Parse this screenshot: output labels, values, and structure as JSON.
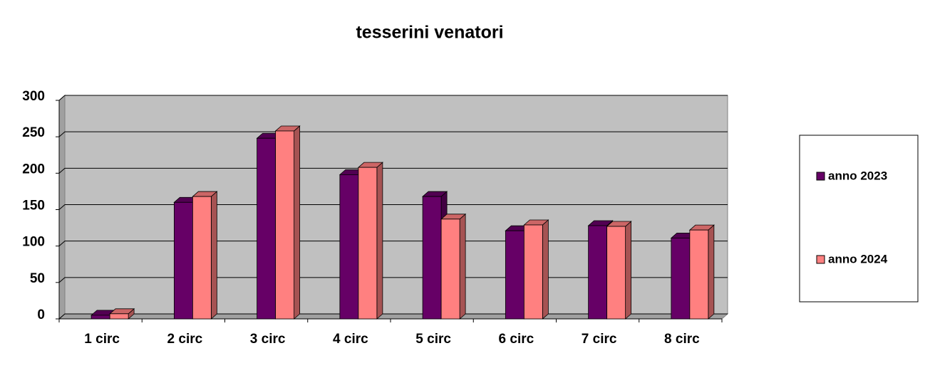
{
  "chart_data": {
    "type": "bar3d",
    "title": "tesserini venatori",
    "categories": [
      "1 circ",
      "2 circ",
      "3 circ",
      "4 circ",
      "5 circ",
      "6 circ",
      "7 circ",
      "8 circ"
    ],
    "series": [
      {
        "name": "anno 2023",
        "color": "#660066",
        "values": [
          5,
          160,
          248,
          198,
          168,
          121,
          128,
          111
        ]
      },
      {
        "name": "anno 2024",
        "color": "#ff8080",
        "values": [
          7,
          168,
          258,
          208,
          137,
          129,
          127,
          122
        ]
      }
    ],
    "ylim": [
      0,
      300
    ],
    "yticks": [
      0,
      50,
      100,
      150,
      200,
      250,
      300
    ],
    "grid": true,
    "legend": "right"
  }
}
